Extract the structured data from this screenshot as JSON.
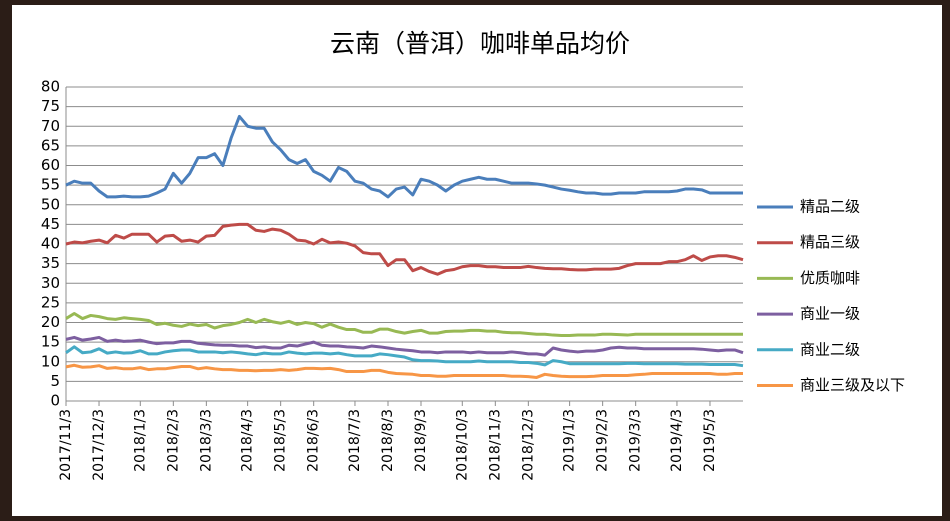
{
  "chart_data": {
    "type": "line",
    "title": "云南（普洱）咖啡单品均价",
    "categories": [
      "2017/11/3",
      null,
      null,
      null,
      "2017/12/3",
      null,
      null,
      null,
      null,
      "2018/1/3",
      null,
      null,
      null,
      "2018/2/3",
      null,
      null,
      null,
      "2018/3/3",
      null,
      null,
      null,
      null,
      "2018/4/3",
      null,
      null,
      null,
      "2018/5/3",
      null,
      null,
      null,
      "2018/6/3",
      null,
      null,
      null,
      null,
      "2018/7/3",
      null,
      null,
      null,
      "2018/8/3",
      null,
      null,
      null,
      "2018/9/3",
      null,
      null,
      null,
      null,
      "2018/10/3",
      null,
      null,
      null,
      "2018/11/3",
      null,
      null,
      null,
      "2018/12/3",
      null,
      null,
      null,
      null,
      "2019/1/3",
      null,
      null,
      null,
      "2019/2/3",
      null,
      null,
      null,
      "2019/3/3",
      null,
      null,
      null,
      null,
      "2019/4/3",
      null,
      null,
      null,
      "2019/5/3",
      null,
      null,
      null,
      null
    ],
    "series": [
      {
        "name": "精品二级",
        "color": "#4a7ebb",
        "values": [
          55,
          56,
          55.5,
          55.5,
          53.5,
          52,
          52,
          52.2,
          52,
          52,
          52.2,
          53,
          54,
          58,
          55.5,
          58,
          62,
          62,
          63,
          60,
          67,
          72.5,
          70,
          69.5,
          69.5,
          66,
          64,
          61.5,
          60.5,
          61.5,
          58.5,
          57.5,
          56,
          59.5,
          58.5,
          56,
          55.5,
          54,
          53.5,
          52,
          54,
          54.5,
          52.5,
          56.5,
          56,
          55,
          53.5,
          55,
          56,
          56.5,
          57,
          56.5,
          56.5,
          56,
          55.5,
          55.5,
          55.5,
          55.3,
          55,
          54.5,
          54,
          53.7,
          53.3,
          53,
          53,
          52.7,
          52.7,
          53,
          53,
          53,
          53.3,
          53.3,
          53.3,
          53.3,
          53.5,
          54,
          54,
          53.8,
          53,
          53,
          53,
          53,
          53
        ]
      },
      {
        "name": "精品三级",
        "color": "#be4b48",
        "values": [
          40,
          40.5,
          40.3,
          40.7,
          41,
          40.3,
          42.2,
          41.5,
          42.5,
          42.5,
          42.5,
          40.5,
          42,
          42.2,
          40.7,
          41,
          40.5,
          42,
          42.2,
          44.5,
          44.8,
          45,
          45,
          43.5,
          43.2,
          43.8,
          43.5,
          42.5,
          41,
          40.8,
          40,
          41.2,
          40.3,
          40.5,
          40.2,
          39.5,
          37.8,
          37.5,
          37.5,
          34.5,
          36,
          36,
          33.2,
          34,
          33,
          32.3,
          33.2,
          33.5,
          34.2,
          34.5,
          34.5,
          34.2,
          34.2,
          34,
          34,
          34,
          34.3,
          34,
          33.8,
          33.7,
          33.7,
          33.5,
          33.4,
          33.4,
          33.6,
          33.6,
          33.6,
          33.8,
          34.5,
          35,
          35,
          35,
          35,
          35.5,
          35.5,
          36,
          37,
          35.8,
          36.7,
          37,
          37,
          36.6,
          36
        ]
      },
      {
        "name": "优质咖啡",
        "color": "#98b954",
        "values": [
          21,
          22.3,
          21,
          21.8,
          21.5,
          21,
          20.8,
          21.2,
          21,
          20.8,
          20.5,
          19.5,
          19.8,
          19.3,
          19,
          19.6,
          19.2,
          19.5,
          18.6,
          19.2,
          19.5,
          20,
          20.8,
          20,
          20.8,
          20.2,
          19.8,
          20.3,
          19.5,
          20,
          19.7,
          18.8,
          19.6,
          18.8,
          18.2,
          18.2,
          17.5,
          17.5,
          18.3,
          18.3,
          17.7,
          17.3,
          17.7,
          18,
          17.3,
          17.3,
          17.7,
          17.8,
          17.8,
          18,
          18,
          17.8,
          17.8,
          17.5,
          17.4,
          17.4,
          17.2,
          17,
          17,
          16.8,
          16.7,
          16.7,
          16.8,
          16.8,
          16.8,
          17,
          17,
          16.9,
          16.8,
          17,
          17,
          17,
          17,
          17,
          17,
          17,
          17,
          17,
          17,
          17,
          17,
          17,
          17
        ]
      },
      {
        "name": "商业一级",
        "color": "#7d5fa0",
        "values": [
          15.7,
          16.2,
          15.5,
          15.8,
          16.2,
          15.2,
          15.5,
          15.2,
          15.3,
          15.5,
          15,
          14.6,
          14.8,
          14.8,
          15.2,
          15.2,
          14.7,
          14.5,
          14.3,
          14.2,
          14.2,
          14,
          14,
          13.6,
          13.8,
          13.5,
          13.5,
          14.2,
          14,
          14.5,
          15,
          14.2,
          14,
          14,
          13.8,
          13.7,
          13.5,
          14,
          13.8,
          13.5,
          13.2,
          13,
          12.8,
          12.5,
          12.5,
          12.3,
          12.5,
          12.5,
          12.5,
          12.3,
          12.5,
          12.3,
          12.3,
          12.3,
          12.5,
          12.3,
          12,
          12,
          11.7,
          13.5,
          13,
          12.7,
          12.5,
          12.7,
          12.7,
          13,
          13.5,
          13.7,
          13.5,
          13.5,
          13.3,
          13.3,
          13.3,
          13.3,
          13.3,
          13.3,
          13.3,
          13.2,
          13,
          12.8,
          13,
          13,
          12.3
        ]
      },
      {
        "name": "商业二级",
        "color": "#46aac5",
        "values": [
          12.3,
          13.8,
          12.3,
          12.5,
          13.3,
          12.2,
          12.5,
          12.2,
          12.3,
          12.8,
          12,
          12,
          12.5,
          12.8,
          13,
          13,
          12.5,
          12.5,
          12.5,
          12.3,
          12.5,
          12.3,
          12,
          11.8,
          12.2,
          12,
          12,
          12.5,
          12.2,
          12,
          12.2,
          12.2,
          12,
          12.2,
          11.8,
          11.5,
          11.5,
          11.5,
          12,
          11.8,
          11.5,
          11.2,
          10.5,
          10.3,
          10.3,
          10.2,
          10,
          10,
          10,
          10,
          10.2,
          10,
          10,
          10,
          10,
          9.8,
          9.8,
          9.6,
          9.2,
          10.3,
          10,
          9.5,
          9.5,
          9.5,
          9.5,
          9.5,
          9.5,
          9.5,
          9.6,
          9.6,
          9.5,
          9.5,
          9.5,
          9.5,
          9.5,
          9.4,
          9.4,
          9.4,
          9.3,
          9.3,
          9.3,
          9.3,
          9
        ]
      },
      {
        "name": "商业三级及以下",
        "color": "#f79646",
        "values": [
          8.7,
          9.1,
          8.6,
          8.7,
          9,
          8.3,
          8.5,
          8.2,
          8.2,
          8.5,
          8,
          8.2,
          8.2,
          8.5,
          8.8,
          8.8,
          8.2,
          8.5,
          8.2,
          8,
          8,
          7.8,
          7.8,
          7.7,
          7.8,
          7.8,
          8,
          7.8,
          8,
          8.3,
          8.3,
          8.2,
          8.3,
          8,
          7.5,
          7.5,
          7.5,
          7.8,
          7.8,
          7.3,
          7,
          6.9,
          6.8,
          6.5,
          6.5,
          6.3,
          6.3,
          6.5,
          6.5,
          6.5,
          6.5,
          6.5,
          6.5,
          6.5,
          6.3,
          6.3,
          6.2,
          6,
          6.8,
          6.5,
          6.3,
          6.2,
          6.2,
          6.2,
          6.3,
          6.5,
          6.5,
          6.5,
          6.5,
          6.7,
          6.8,
          7,
          7,
          7,
          7,
          7,
          7,
          7,
          7,
          6.8,
          6.8,
          7,
          7
        ]
      }
    ],
    "ylim": [
      0,
      80
    ],
    "yticks": [
      0,
      5,
      10,
      15,
      20,
      25,
      30,
      35,
      40,
      45,
      50,
      55,
      60,
      65,
      70,
      75,
      80
    ],
    "grid": true,
    "legend": "right"
  }
}
